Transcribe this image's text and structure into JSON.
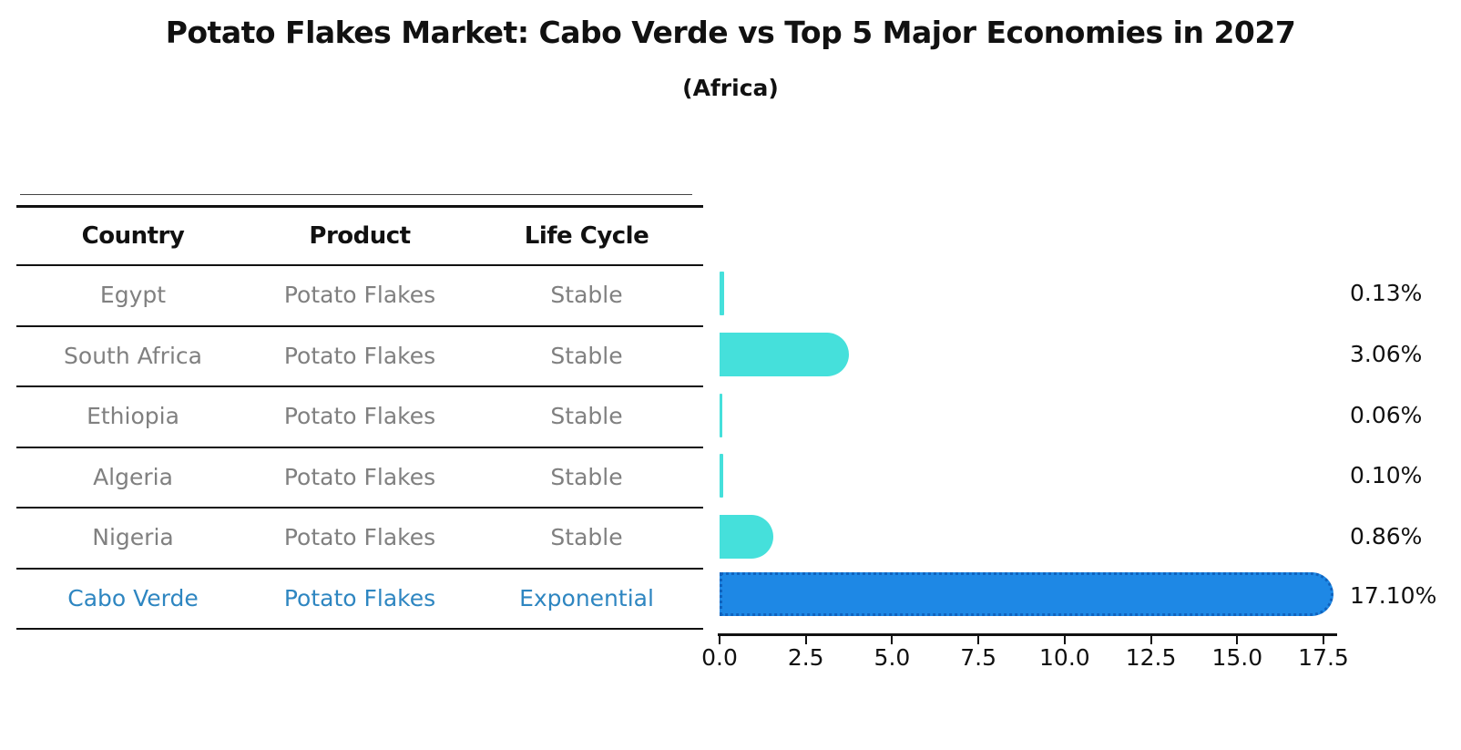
{
  "header": {
    "title": "Potato Flakes Market: Cabo Verde vs Top 5 Major Economies in 2027",
    "subtitle": "(Africa)"
  },
  "table": {
    "columns": {
      "country": "Country",
      "product": "Product",
      "life_cycle": "Life Cycle"
    },
    "rows": [
      {
        "country": "Egypt",
        "product": "Potato Flakes",
        "life_cycle": "Stable",
        "value_label": "0.13%"
      },
      {
        "country": "South Africa",
        "product": "Potato Flakes",
        "life_cycle": "Stable",
        "value_label": "3.06%"
      },
      {
        "country": "Ethiopia",
        "product": "Potato Flakes",
        "life_cycle": "Stable",
        "value_label": "0.06%"
      },
      {
        "country": "Algeria",
        "product": "Potato Flakes",
        "life_cycle": "Stable",
        "value_label": "0.10%"
      },
      {
        "country": "Nigeria",
        "product": "Potato Flakes",
        "life_cycle": "Stable",
        "value_label": "0.86%"
      },
      {
        "country": "Cabo Verde",
        "product": "Potato Flakes",
        "life_cycle": "Exponential",
        "value_label": "17.10%"
      }
    ]
  },
  "chart_data": {
    "type": "bar",
    "orientation": "horizontal",
    "title": "Potato Flakes Market: Cabo Verde vs Top 5 Major Economies in 2027",
    "subtitle": "(Africa)",
    "categories": [
      "Egypt",
      "South Africa",
      "Ethiopia",
      "Algeria",
      "Nigeria",
      "Cabo Verde"
    ],
    "values": [
      0.13,
      3.06,
      0.06,
      0.1,
      0.86,
      17.1
    ],
    "value_labels": [
      "0.13%",
      "3.06%",
      "0.06%",
      "0.10%",
      "0.86%",
      "17.10%"
    ],
    "highlighted_category": "Cabo Verde",
    "xlabel": "",
    "ylabel": "",
    "xlim": [
      0.0,
      17.95
    ],
    "x_ticks": [
      "0.0",
      "2.5",
      "5.0",
      "7.5",
      "10.0",
      "12.5",
      "15.0",
      "17.5"
    ],
    "grid": "off",
    "legend": "none",
    "colors": {
      "bar_default": "#45E0DB",
      "bar_highlight": "#1E88E5",
      "bar_highlight_edge": "#0A50AA",
      "highlight_text": "#2E86C1",
      "row_text": "#808080",
      "axis_text": "#111111"
    }
  }
}
